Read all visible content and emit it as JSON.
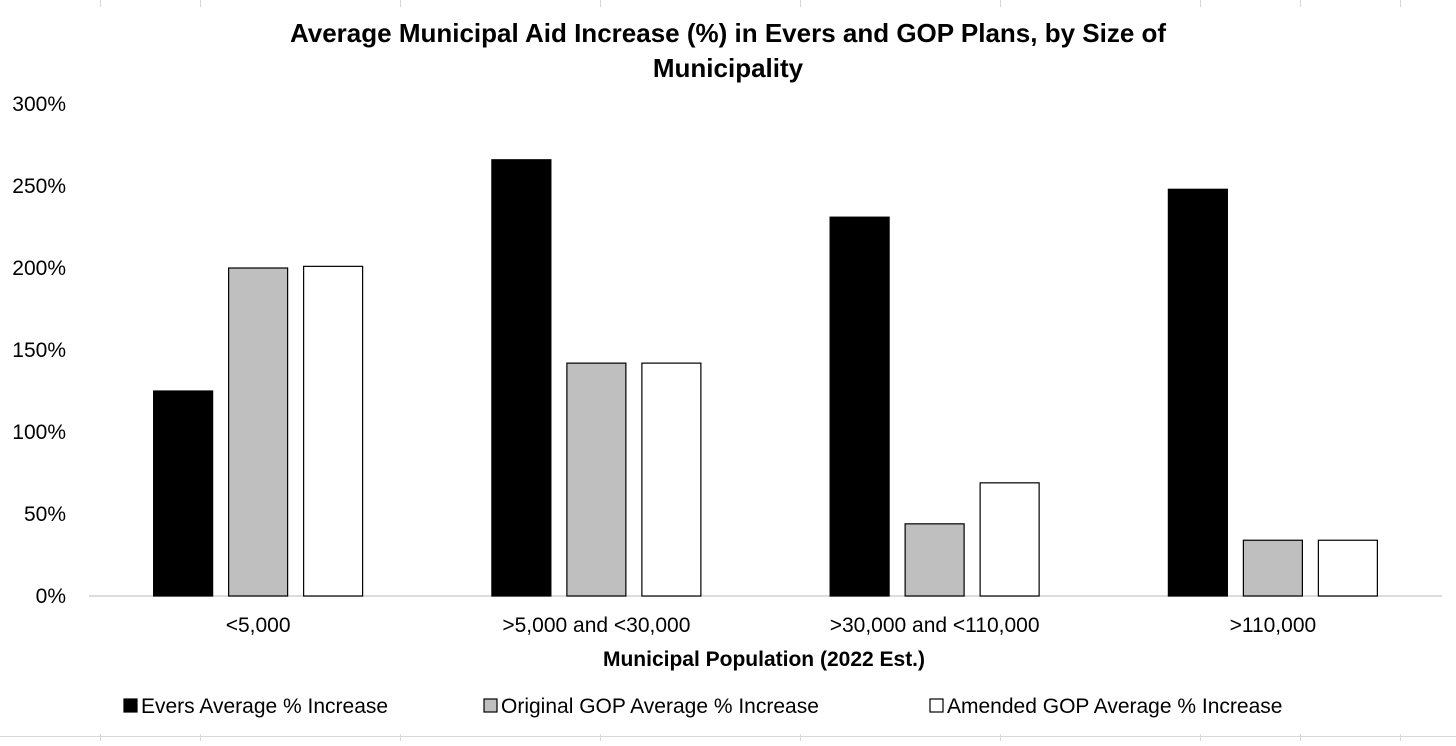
{
  "chart_data": {
    "type": "bar",
    "title": "Average Municipal Aid Increase (%) in Evers and GOP Plans, by Size of Municipality",
    "title_lines": [
      "Average Municipal Aid Increase (%) in Evers and GOP Plans, by Size of",
      "Municipality"
    ],
    "xlabel": "Municipal Population (2022 Est.)",
    "ylabel": "",
    "categories": [
      "<5,000",
      ">5,000 and <30,000",
      ">30,000 and <110,000",
      ">110,000"
    ],
    "ylim": [
      0,
      300
    ],
    "y_ticks": [
      "0%",
      "50%",
      "100%",
      "150%",
      "200%",
      "250%",
      "300%"
    ],
    "grid": false,
    "legend_position": "bottom",
    "series": [
      {
        "name": "Evers Average % Increase",
        "values": [
          125,
          266,
          231,
          248
        ],
        "color": "#000000"
      },
      {
        "name": "Original GOP Average % Increase",
        "values": [
          200,
          142,
          44,
          34
        ],
        "color": "#bfbfbf"
      },
      {
        "name": "Amended GOP Average % Increase",
        "values": [
          201,
          142,
          69,
          34
        ],
        "color": "#ffffff"
      }
    ]
  }
}
